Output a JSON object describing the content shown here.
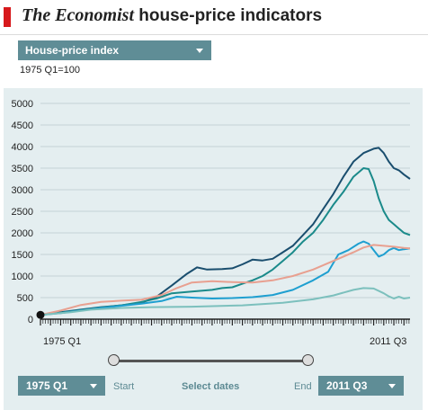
{
  "header": {
    "title_brand": "The Economist",
    "title_rest": " house-price indicators"
  },
  "selector": {
    "value": "House-price index"
  },
  "base_note": "1975 Q1=100",
  "range": {
    "start_value": "1975 Q1",
    "end_value": "2011 Q3",
    "start_label": "Start",
    "end_label": "End",
    "select_label": "Select dates"
  },
  "colors": {
    "accent": "#5f8d96",
    "brand_red": "#d7191c",
    "panel": "#e4eef0"
  },
  "chart_data": {
    "type": "line",
    "x_start_label": "1975 Q1",
    "x_end_label": "2011 Q3",
    "xlim": [
      1975,
      2011.6
    ],
    "ylim": [
      0,
      5000
    ],
    "yticks": [
      "0",
      "500",
      "1000",
      "1500",
      "2000",
      "2500",
      "3000",
      "3500",
      "4000",
      "4500",
      "5000"
    ],
    "grid": true,
    "series": [
      {
        "color": "#1a4e6e",
        "points": [
          [
            1975,
            100
          ],
          [
            1977,
            160
          ],
          [
            1979,
            220
          ],
          [
            1981,
            280
          ],
          [
            1983,
            320
          ],
          [
            1985,
            380
          ],
          [
            1986.5,
            520
          ],
          [
            1988,
            780
          ],
          [
            1989.5,
            1050
          ],
          [
            1990.5,
            1200
          ],
          [
            1991.5,
            1150
          ],
          [
            1993,
            1160
          ],
          [
            1994,
            1180
          ],
          [
            1995,
            1270
          ],
          [
            1996,
            1380
          ],
          [
            1997,
            1360
          ],
          [
            1998,
            1400
          ],
          [
            1999,
            1550
          ],
          [
            2000,
            1700
          ],
          [
            2001,
            1950
          ],
          [
            2002,
            2200
          ],
          [
            2003,
            2550
          ],
          [
            2004,
            2900
          ],
          [
            2005,
            3300
          ],
          [
            2006,
            3650
          ],
          [
            2007,
            3850
          ],
          [
            2008,
            3950
          ],
          [
            2008.5,
            3970
          ],
          [
            2009,
            3850
          ],
          [
            2009.5,
            3650
          ],
          [
            2010,
            3500
          ],
          [
            2010.5,
            3450
          ],
          [
            2011,
            3350
          ],
          [
            2011.6,
            3250
          ]
        ]
      },
      {
        "color": "#1a8a8a",
        "points": [
          [
            1975,
            100
          ],
          [
            1977,
            150
          ],
          [
            1979,
            210
          ],
          [
            1981,
            270
          ],
          [
            1983,
            320
          ],
          [
            1985,
            400
          ],
          [
            1986.5,
            480
          ],
          [
            1988,
            600
          ],
          [
            1990,
            640
          ],
          [
            1992,
            680
          ],
          [
            1993,
            720
          ],
          [
            1994,
            740
          ],
          [
            1995,
            820
          ],
          [
            1996,
            900
          ],
          [
            1997,
            1000
          ],
          [
            1998,
            1150
          ],
          [
            1999,
            1350
          ],
          [
            2000,
            1550
          ],
          [
            2001,
            1800
          ],
          [
            2002,
            2000
          ],
          [
            2003,
            2300
          ],
          [
            2004,
            2650
          ],
          [
            2005,
            2950
          ],
          [
            2006,
            3300
          ],
          [
            2007,
            3500
          ],
          [
            2007.5,
            3480
          ],
          [
            2008,
            3200
          ],
          [
            2008.5,
            2800
          ],
          [
            2009,
            2500
          ],
          [
            2009.5,
            2300
          ],
          [
            2010,
            2200
          ],
          [
            2010.5,
            2100
          ],
          [
            2011,
            2000
          ],
          [
            2011.6,
            1950
          ]
        ]
      },
      {
        "color": "#1e9fd0",
        "points": [
          [
            1975,
            100
          ],
          [
            1977,
            140
          ],
          [
            1979,
            200
          ],
          [
            1981,
            260
          ],
          [
            1983,
            310
          ],
          [
            1985,
            360
          ],
          [
            1987,
            420
          ],
          [
            1988.5,
            520
          ],
          [
            1990,
            500
          ],
          [
            1992,
            480
          ],
          [
            1994,
            490
          ],
          [
            1996,
            510
          ],
          [
            1998,
            560
          ],
          [
            2000,
            680
          ],
          [
            2002,
            900
          ],
          [
            2003.5,
            1100
          ],
          [
            2004.5,
            1500
          ],
          [
            2005.5,
            1600
          ],
          [
            2006.5,
            1750
          ],
          [
            2007,
            1800
          ],
          [
            2007.5,
            1750
          ],
          [
            2008,
            1600
          ],
          [
            2008.5,
            1450
          ],
          [
            2009,
            1500
          ],
          [
            2009.5,
            1600
          ],
          [
            2010,
            1650
          ],
          [
            2010.5,
            1600
          ],
          [
            2011,
            1620
          ],
          [
            2011.6,
            1640
          ]
        ]
      },
      {
        "color": "#e8a090",
        "points": [
          [
            1975,
            100
          ],
          [
            1977,
            200
          ],
          [
            1979,
            330
          ],
          [
            1981,
            400
          ],
          [
            1983,
            430
          ],
          [
            1985,
            450
          ],
          [
            1987,
            560
          ],
          [
            1988.5,
            720
          ],
          [
            1990,
            850
          ],
          [
            1992,
            880
          ],
          [
            1994,
            860
          ],
          [
            1996,
            850
          ],
          [
            1998,
            900
          ],
          [
            2000,
            1000
          ],
          [
            2002,
            1150
          ],
          [
            2004,
            1350
          ],
          [
            2005,
            1450
          ],
          [
            2006,
            1550
          ],
          [
            2007,
            1660
          ],
          [
            2008,
            1720
          ],
          [
            2009,
            1700
          ],
          [
            2010,
            1680
          ],
          [
            2011,
            1650
          ],
          [
            2011.6,
            1640
          ]
        ]
      },
      {
        "color": "#7cc0bd",
        "points": [
          [
            1975,
            100
          ],
          [
            1978,
            160
          ],
          [
            1980,
            220
          ],
          [
            1983,
            260
          ],
          [
            1986,
            280
          ],
          [
            1990,
            290
          ],
          [
            1995,
            320
          ],
          [
            1999,
            380
          ],
          [
            2002,
            460
          ],
          [
            2004,
            550
          ],
          [
            2006,
            680
          ],
          [
            2007,
            720
          ],
          [
            2008,
            710
          ],
          [
            2009,
            600
          ],
          [
            2009.5,
            530
          ],
          [
            2010,
            480
          ],
          [
            2010.5,
            520
          ],
          [
            2011,
            480
          ],
          [
            2011.6,
            500
          ]
        ]
      }
    ]
  }
}
